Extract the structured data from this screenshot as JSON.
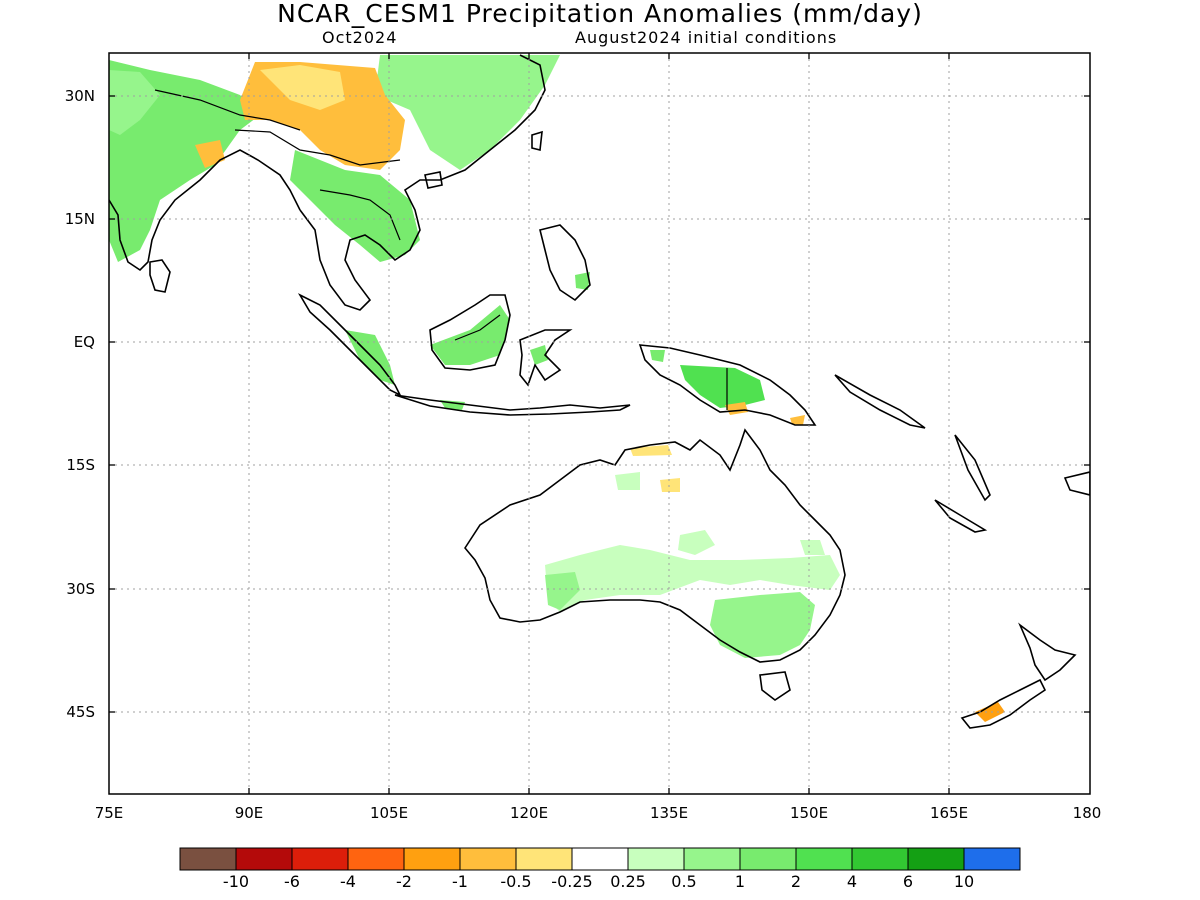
{
  "title": "NCAR_CESM1 Precipitation Anomalies (mm/day)",
  "subtitle_left": "Oct2024",
  "subtitle_right": "August2024 initial conditions",
  "map": {
    "lon_range": [
      75,
      180
    ],
    "lat_range": [
      -52,
      35
    ],
    "grid": true,
    "lat_ticks": [
      {
        "value": 30,
        "label": "30N"
      },
      {
        "value": 15,
        "label": "15N"
      },
      {
        "value": 0,
        "label": "EQ"
      },
      {
        "value": -15,
        "label": "15S"
      },
      {
        "value": -30,
        "label": "30S"
      },
      {
        "value": -45,
        "label": "45S"
      }
    ],
    "lon_ticks": [
      {
        "value": 75,
        "label": "75E"
      },
      {
        "value": 90,
        "label": "90E"
      },
      {
        "value": 105,
        "label": "105E"
      },
      {
        "value": 120,
        "label": "120E"
      },
      {
        "value": 135,
        "label": "135E"
      },
      {
        "value": 150,
        "label": "150E"
      },
      {
        "value": 165,
        "label": "165E"
      },
      {
        "value": 180,
        "label": "180"
      }
    ]
  },
  "colorbar": {
    "colors": [
      "#7a5040",
      "#b40a0a",
      "#dc1e0a",
      "#ff6410",
      "#ffa010",
      "#ffbe3c",
      "#ffe478",
      "#ffffff",
      "#c8ffbe",
      "#96f58c",
      "#78eb6e",
      "#50e150",
      "#32c832",
      "#14a014",
      "#1e6eeb"
    ],
    "labels": [
      "-10",
      "-6",
      "-4",
      "-2",
      "-1",
      "-0.5",
      "-0.25",
      "0.25",
      "0.5",
      "1",
      "2",
      "4",
      "6",
      "10"
    ]
  },
  "anomaly_regions": [
    {
      "name": "india-himalaya",
      "level": "1",
      "color": "#78eb6e"
    },
    {
      "name": "tibetan-plateau-south",
      "level": "-0.5",
      "color": "#ffbe3c"
    },
    {
      "name": "indochina",
      "level": "1",
      "color": "#78eb6e"
    },
    {
      "name": "south-china",
      "level": "1",
      "color": "#78eb6e"
    },
    {
      "name": "borneo",
      "level": "1",
      "color": "#78eb6e"
    },
    {
      "name": "sumatra",
      "level": "1",
      "color": "#78eb6e"
    },
    {
      "name": "new-guinea",
      "level": "2",
      "color": "#50e150"
    },
    {
      "name": "australia-interior",
      "level": "0.25",
      "color": "#c8ffbe"
    },
    {
      "name": "southeast-australia",
      "level": "1",
      "color": "#78eb6e"
    },
    {
      "name": "new-zealand-south-island",
      "level": "-1",
      "color": "#ffa010"
    }
  ]
}
